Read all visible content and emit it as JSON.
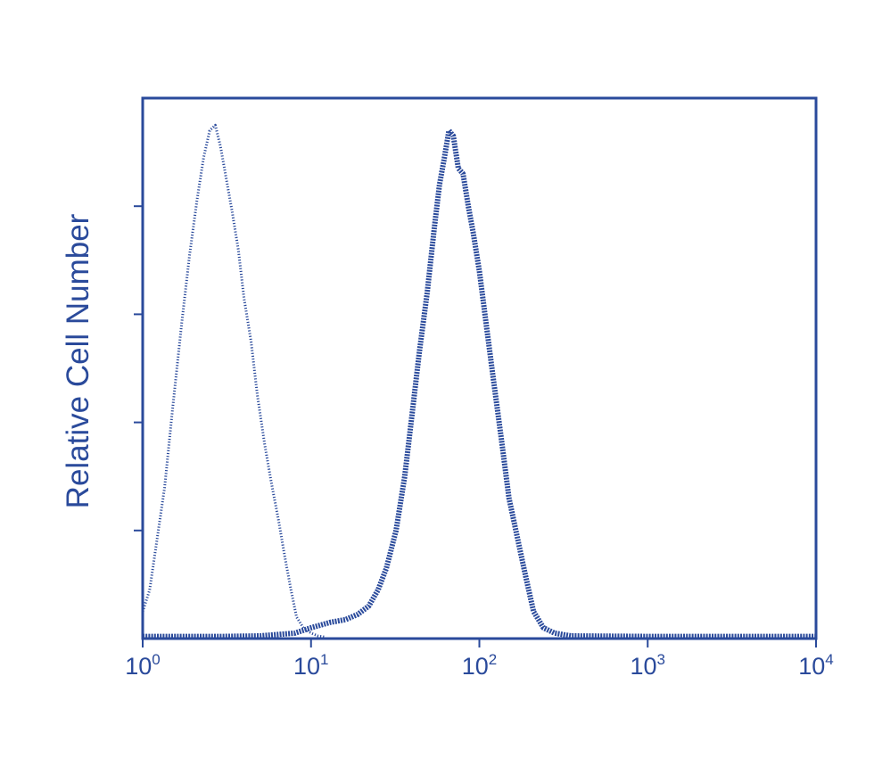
{
  "chart_data": {
    "type": "line",
    "xscale": "log",
    "xlim": [
      1,
      10000
    ],
    "ylim": [
      0,
      100
    ],
    "ylabel": "Relative Cell Number",
    "xticks": [
      {
        "base": "10",
        "exp": "0"
      },
      {
        "base": "10",
        "exp": "1"
      },
      {
        "base": "10",
        "exp": "2"
      },
      {
        "base": "10",
        "exp": "3"
      },
      {
        "base": "10",
        "exp": "4"
      }
    ],
    "grid": false,
    "color": "#2a4a9b",
    "series": [
      {
        "style": "dotted-thin",
        "x": [
          1,
          1.1,
          1.2,
          1.35,
          1.5,
          1.7,
          1.9,
          2.1,
          2.3,
          2.5,
          2.7,
          2.9,
          3.1,
          3.4,
          3.7,
          4.0,
          4.4,
          4.8,
          5.3,
          5.8,
          6.4,
          7.0,
          7.6,
          8.2,
          9.0,
          10,
          11,
          12
        ],
        "y": [
          5,
          9,
          17,
          28,
          42,
          58,
          71,
          81,
          89,
          94,
          95,
          91,
          86,
          79,
          72,
          63,
          55,
          45,
          36,
          29,
          22,
          15,
          9,
          4,
          2,
          1,
          0.5,
          0.3
        ]
      },
      {
        "style": "dotted-bold",
        "x": [
          1,
          3,
          5,
          8,
          10,
          13,
          16,
          19,
          22,
          25,
          28,
          32,
          36,
          40,
          44,
          49,
          54,
          58,
          62,
          66,
          70,
          75,
          80,
          86,
          92,
          100,
          110,
          120,
          135,
          150,
          170,
          190,
          210,
          240,
          280,
          350,
          1000,
          10000
        ],
        "y": [
          0.4,
          0.4,
          0.5,
          1,
          2,
          3,
          3.5,
          4.5,
          6,
          9,
          13,
          20,
          30,
          42,
          53,
          64,
          76,
          84,
          89,
          94,
          93,
          87,
          86,
          80,
          75,
          68,
          58,
          49,
          37,
          26,
          18,
          11,
          5,
          2,
          1,
          0.5,
          0.4,
          0.4
        ]
      }
    ]
  }
}
